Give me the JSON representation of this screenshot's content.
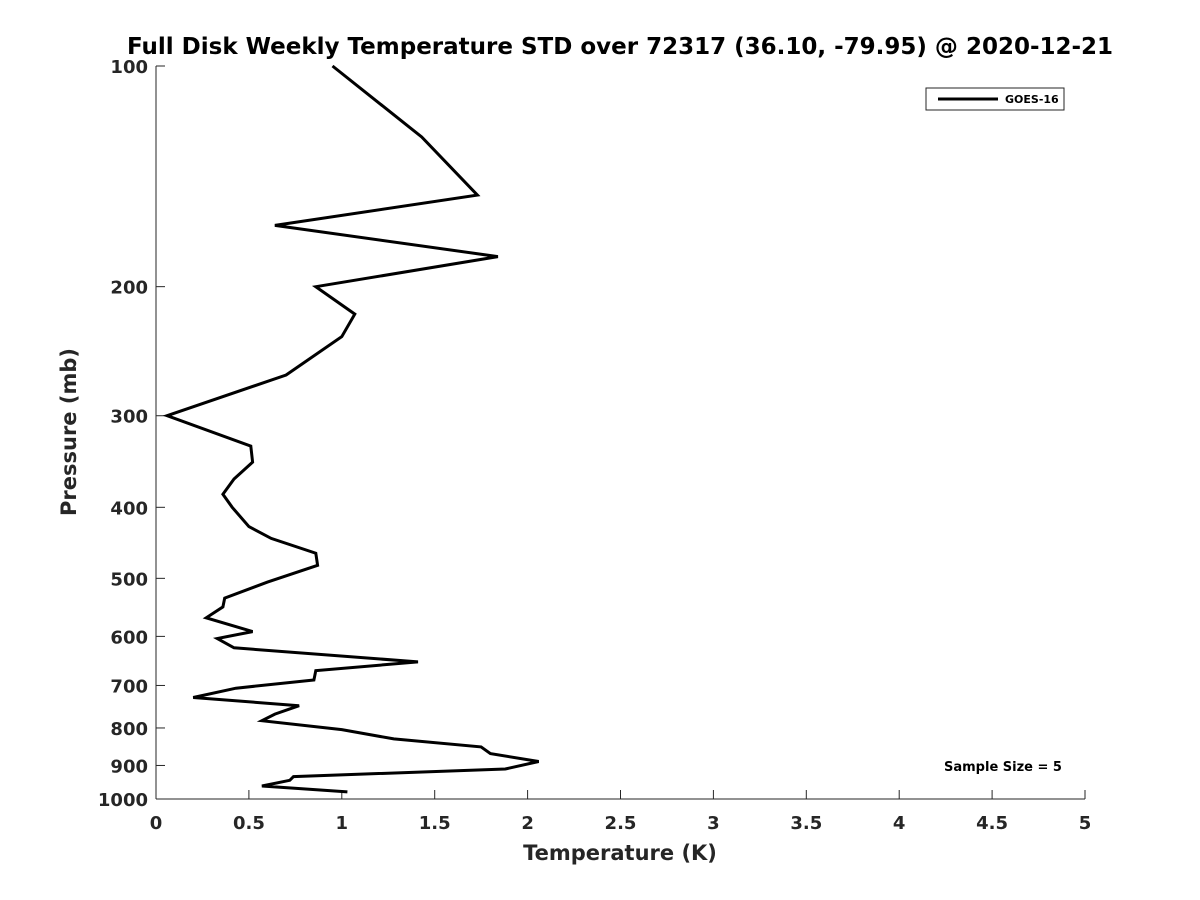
{
  "chart_data": {
    "type": "line",
    "title": "Full Disk Weekly Temperature STD over 72317 (36.10, -79.95) @ 2020-12-21",
    "xlabel": "Temperature (K)",
    "ylabel": "Pressure (mb)",
    "xlim": [
      0,
      5
    ],
    "ylim": [
      1000,
      100
    ],
    "y_scale": "log",
    "y_reversed": true,
    "x_ticks": [
      "0",
      "0.5",
      "1",
      "1.5",
      "2",
      "2.5",
      "3",
      "3.5",
      "4",
      "4.5",
      "5"
    ],
    "y_ticks": [
      "100",
      "200",
      "300",
      "400",
      "500",
      "600",
      "700",
      "800",
      "900",
      "1000"
    ],
    "grid": false,
    "legend_position": "top-right",
    "annotation": "Sample Size = 5",
    "line_color": "#000000",
    "series": [
      {
        "name": "GOES-16",
        "x": [
          0.95,
          1.43,
          1.73,
          0.64,
          1.84,
          0.86,
          1.07,
          1.0,
          0.7,
          0.06,
          0.51,
          0.52,
          0.42,
          0.36,
          0.41,
          0.5,
          0.62,
          0.86,
          0.87,
          0.6,
          0.37,
          0.36,
          0.27,
          0.52,
          0.33,
          0.42,
          1.41,
          0.86,
          0.85,
          0.43,
          0.2,
          0.77,
          0.64,
          0.57,
          1.0,
          1.28,
          1.75,
          1.8,
          2.06,
          1.88,
          0.74,
          0.72,
          0.57,
          1.03
        ],
        "y": [
          100,
          125,
          150,
          165,
          182,
          200,
          218,
          234,
          264,
          300,
          330,
          347,
          366,
          384,
          400,
          425,
          441,
          462,
          480,
          506,
          532,
          547,
          566,
          591,
          604,
          622,
          650,
          668,
          688,
          706,
          727,
          746,
          766,
          782,
          804,
          828,
          849,
          867,
          889,
          910,
          932,
          943,
          960,
          978
        ]
      }
    ]
  }
}
